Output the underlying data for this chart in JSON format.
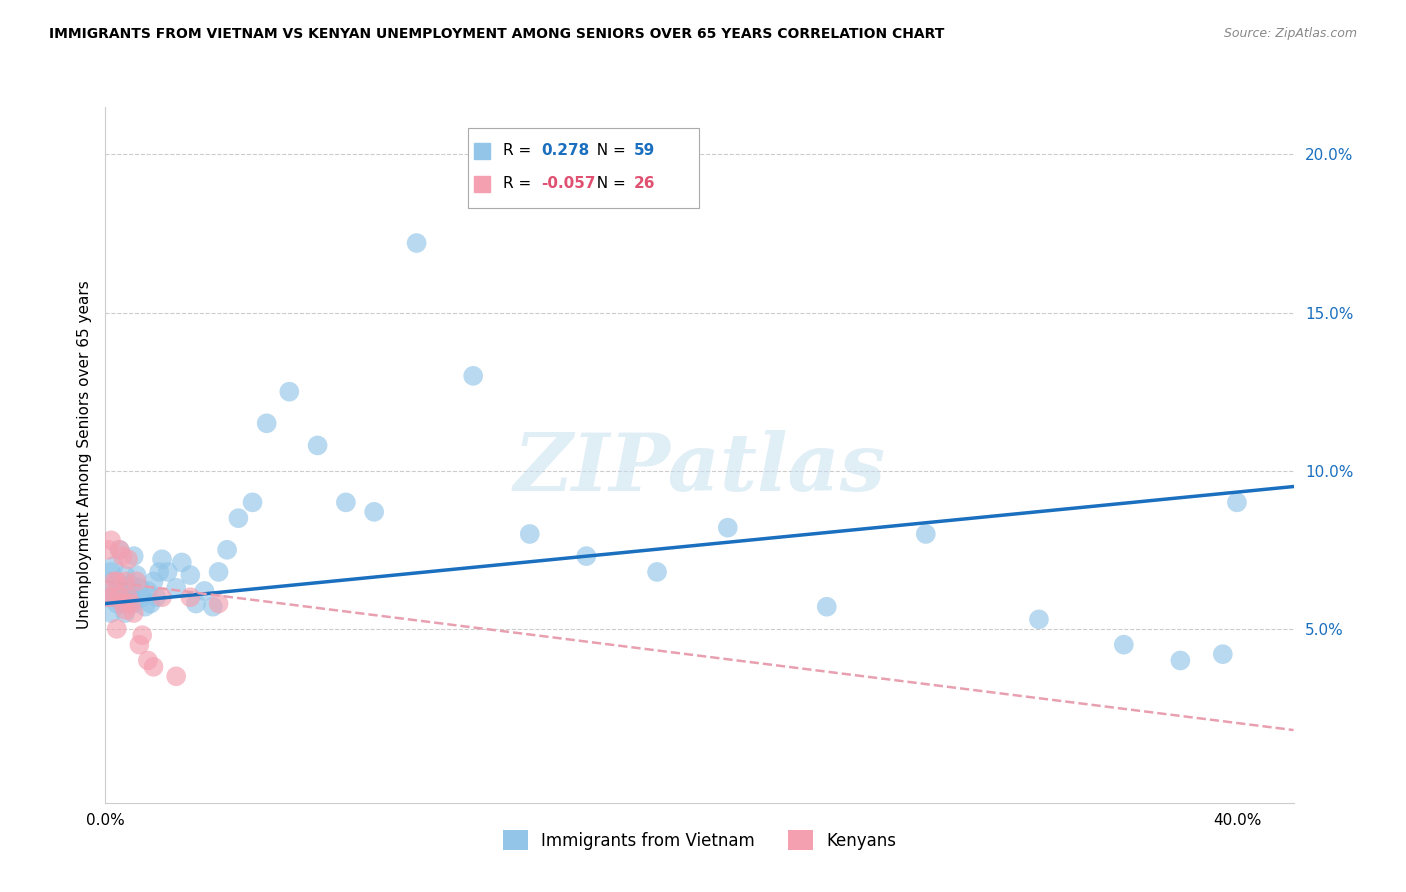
{
  "title": "IMMIGRANTS FROM VIETNAM VS KENYAN UNEMPLOYMENT AMONG SENIORS OVER 65 YEARS CORRELATION CHART",
  "source": "Source: ZipAtlas.com",
  "ylabel": "Unemployment Among Seniors over 65 years",
  "xlim": [
    0.0,
    0.42
  ],
  "ylim": [
    -0.005,
    0.215
  ],
  "xticks": [
    0.0,
    0.4
  ],
  "xticklabels": [
    "0.0%",
    "40.0%"
  ],
  "yticks_right": [
    0.05,
    0.1,
    0.15,
    0.2
  ],
  "yticklabels_right": [
    "5.0%",
    "10.0%",
    "15.0%",
    "20.0%"
  ],
  "watermark": "ZIPatlas",
  "legend_blue_r": "R = ",
  "legend_blue_r_val": "0.278",
  "legend_blue_n": "N = ",
  "legend_blue_n_val": "59",
  "legend_pink_r": "R = ",
  "legend_pink_r_val": "-0.057",
  "legend_pink_n": "N = ",
  "legend_pink_n_val": "26",
  "legend_label_blue": "Immigrants from Vietnam",
  "legend_label_pink": "Kenyans",
  "blue_color": "#92C5E8",
  "pink_color": "#F4A0B0",
  "blue_line_color": "#1A6FBF",
  "pink_line_color": "#E8A0B0",
  "blue_val_color": "#1A6FBF",
  "pink_val_color": "#E05070",
  "vietnam_x": [
    0.001,
    0.001,
    0.002,
    0.002,
    0.003,
    0.003,
    0.004,
    0.004,
    0.005,
    0.005,
    0.006,
    0.006,
    0.007,
    0.007,
    0.008,
    0.008,
    0.009,
    0.009,
    0.01,
    0.01,
    0.011,
    0.012,
    0.013,
    0.014,
    0.015,
    0.016,
    0.017,
    0.018,
    0.019,
    0.02,
    0.022,
    0.025,
    0.027,
    0.03,
    0.032,
    0.035,
    0.038,
    0.04,
    0.043,
    0.047,
    0.052,
    0.057,
    0.065,
    0.075,
    0.085,
    0.095,
    0.11,
    0.13,
    0.15,
    0.17,
    0.195,
    0.22,
    0.255,
    0.29,
    0.33,
    0.36,
    0.38,
    0.395,
    0.4
  ],
  "vietnam_y": [
    0.06,
    0.065,
    0.055,
    0.068,
    0.06,
    0.07,
    0.065,
    0.058,
    0.062,
    0.075,
    0.058,
    0.063,
    0.067,
    0.055,
    0.058,
    0.062,
    0.064,
    0.06,
    0.058,
    0.073,
    0.067,
    0.063,
    0.06,
    0.057,
    0.062,
    0.058,
    0.065,
    0.06,
    0.068,
    0.072,
    0.068,
    0.063,
    0.071,
    0.067,
    0.058,
    0.062,
    0.057,
    0.068,
    0.075,
    0.085,
    0.09,
    0.115,
    0.125,
    0.108,
    0.09,
    0.087,
    0.172,
    0.13,
    0.08,
    0.073,
    0.068,
    0.082,
    0.057,
    0.08,
    0.053,
    0.045,
    0.04,
    0.042,
    0.09
  ],
  "kenya_x": [
    0.001,
    0.001,
    0.002,
    0.002,
    0.003,
    0.004,
    0.004,
    0.005,
    0.005,
    0.006,
    0.006,
    0.007,
    0.007,
    0.008,
    0.008,
    0.009,
    0.01,
    0.011,
    0.012,
    0.013,
    0.015,
    0.017,
    0.02,
    0.025,
    0.03,
    0.04
  ],
  "kenya_y": [
    0.06,
    0.075,
    0.06,
    0.078,
    0.065,
    0.05,
    0.065,
    0.06,
    0.075,
    0.058,
    0.073,
    0.065,
    0.056,
    0.06,
    0.072,
    0.058,
    0.055,
    0.065,
    0.045,
    0.048,
    0.04,
    0.038,
    0.06,
    0.035,
    0.06,
    0.058
  ],
  "blue_trend_x": [
    0.0,
    0.42
  ],
  "blue_trend_y": [
    0.058,
    0.095
  ],
  "pink_trend_x": [
    0.0,
    0.42
  ],
  "pink_trend_y": [
    0.065,
    0.018
  ]
}
